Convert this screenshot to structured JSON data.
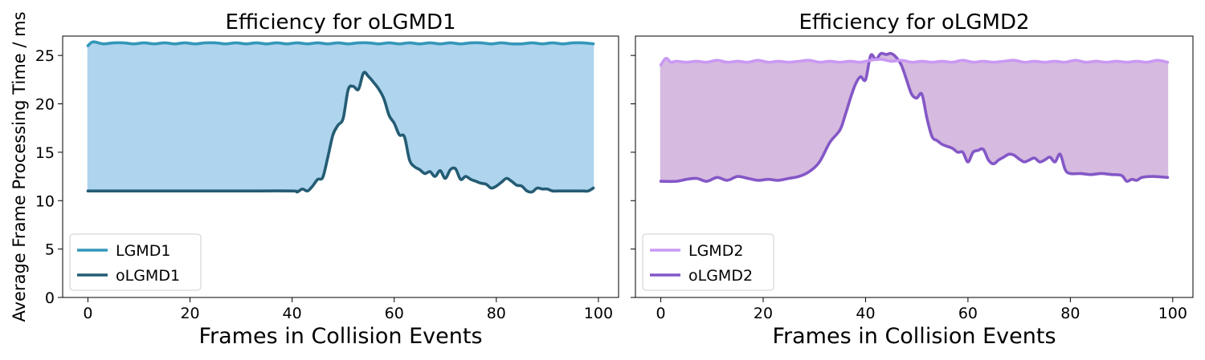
{
  "ylabel": "Average Frame Processing Time  / ms",
  "chart_data": [
    {
      "type": "area",
      "title": "Efficiency for oLGMD1",
      "xlabel": "Frames in Collision Events",
      "xlim": [
        -4.95,
        103.95
      ],
      "ylim": [
        0,
        27
      ],
      "xticks": [
        0,
        20,
        40,
        60,
        80,
        100
      ],
      "yticks": [
        0,
        5,
        10,
        15,
        20,
        25
      ],
      "fill_between": [
        "LGMD1",
        "oLGMD1"
      ],
      "fill_color": "#aed4ee",
      "legend_position": "lower left",
      "series": [
        {
          "name": "LGMD1",
          "color": "#3497b9",
          "x": [
            0,
            1,
            3,
            5,
            7,
            9,
            11,
            13,
            15,
            17,
            19,
            21,
            23,
            25,
            27,
            29,
            31,
            33,
            35,
            37,
            39,
            41,
            43,
            45,
            47,
            49,
            51,
            53,
            55,
            57,
            59,
            61,
            63,
            65,
            67,
            69,
            71,
            73,
            75,
            77,
            79,
            81,
            83,
            85,
            87,
            89,
            91,
            93,
            95,
            97,
            99
          ],
          "values": [
            26.0,
            26.4,
            26.2,
            26.3,
            26.3,
            26.2,
            26.3,
            26.2,
            26.3,
            26.2,
            26.3,
            26.2,
            26.3,
            26.3,
            26.2,
            26.3,
            26.2,
            26.3,
            26.2,
            26.3,
            26.2,
            26.3,
            26.2,
            26.3,
            26.2,
            26.3,
            26.2,
            26.3,
            26.3,
            26.2,
            26.3,
            26.2,
            26.3,
            26.2,
            26.3,
            26.2,
            26.3,
            26.2,
            26.3,
            26.3,
            26.2,
            26.3,
            26.2,
            26.2,
            26.3,
            26.2,
            26.3,
            26.2,
            26.3,
            26.3,
            26.2
          ]
        },
        {
          "name": "oLGMD1",
          "color": "#245c74",
          "x": [
            0,
            10,
            20,
            30,
            40,
            41,
            42,
            43,
            44,
            45,
            46,
            47,
            48,
            49,
            50,
            51,
            52,
            53,
            54,
            55,
            56,
            57,
            58,
            59,
            60,
            61,
            62,
            63,
            64,
            65,
            66,
            67,
            68,
            69,
            70,
            71,
            72,
            73,
            74,
            75,
            76,
            77,
            78,
            79,
            80,
            81,
            82,
            83,
            84,
            85,
            86,
            87,
            88,
            89,
            90,
            91,
            92,
            93,
            94,
            95,
            96,
            97,
            98,
            99
          ],
          "values": [
            11.0,
            11.0,
            11.0,
            11.0,
            11.0,
            10.9,
            11.2,
            11.0,
            11.5,
            12.2,
            12.4,
            14.5,
            16.8,
            17.8,
            18.5,
            21.5,
            21.8,
            21.5,
            23.2,
            22.8,
            22.2,
            21.5,
            20.5,
            18.8,
            18.0,
            16.8,
            16.6,
            14.2,
            13.5,
            13.2,
            12.8,
            13.0,
            12.5,
            13.1,
            12.3,
            13.2,
            13.3,
            12.2,
            12.5,
            12.2,
            12.0,
            11.8,
            11.7,
            11.3,
            11.5,
            11.9,
            12.3,
            12.0,
            11.6,
            11.5,
            11.0,
            10.9,
            11.3,
            11.2,
            11.2,
            11.0,
            11.0,
            11.0,
            11.0,
            11.0,
            11.0,
            11.0,
            11.0,
            11.3
          ]
        }
      ]
    },
    {
      "type": "area",
      "title": "Efficiency for oLGMD2",
      "xlabel": "Frames in Collision Events",
      "xlim": [
        -4.95,
        103.95
      ],
      "ylim": [
        0,
        27
      ],
      "xticks": [
        0,
        20,
        40,
        60,
        80,
        100
      ],
      "yticks": [
        0,
        5,
        10,
        15,
        20,
        25
      ],
      "fill_between": [
        "LGMD2",
        "oLGMD2"
      ],
      "fill_color": "#d6badf",
      "legend_position": "lower left",
      "series": [
        {
          "name": "LGMD2",
          "color": "#c999f3",
          "x": [
            0,
            1,
            2,
            3,
            5,
            7,
            9,
            11,
            13,
            15,
            17,
            19,
            21,
            23,
            25,
            27,
            29,
            31,
            33,
            35,
            37,
            39,
            41,
            43,
            45,
            47,
            49,
            51,
            53,
            55,
            57,
            59,
            61,
            63,
            65,
            67,
            69,
            71,
            73,
            75,
            77,
            79,
            81,
            83,
            85,
            87,
            89,
            91,
            93,
            95,
            97,
            99
          ],
          "values": [
            24.0,
            24.7,
            24.3,
            24.4,
            24.3,
            24.4,
            24.3,
            24.5,
            24.3,
            24.4,
            24.3,
            24.5,
            24.3,
            24.4,
            24.3,
            24.4,
            24.5,
            24.3,
            24.4,
            24.3,
            24.4,
            24.3,
            24.5,
            24.6,
            24.4,
            24.5,
            24.3,
            24.4,
            24.3,
            24.4,
            24.3,
            24.5,
            24.3,
            24.4,
            24.3,
            24.4,
            24.5,
            24.3,
            24.4,
            24.3,
            24.4,
            24.3,
            24.5,
            24.3,
            24.4,
            24.3,
            24.4,
            24.3,
            24.4,
            24.3,
            24.5,
            24.3
          ]
        },
        {
          "name": "oLGMD2",
          "color": "#8457c7",
          "x": [
            0,
            3,
            5,
            7,
            9,
            11,
            13,
            15,
            17,
            19,
            21,
            23,
            25,
            27,
            29,
            31,
            33,
            35,
            36,
            37,
            38,
            39,
            40,
            41,
            42,
            43,
            44,
            45,
            46,
            47,
            48,
            49,
            50,
            51,
            52,
            53,
            54,
            55,
            56,
            57,
            58,
            59,
            60,
            61,
            62,
            63,
            64,
            65,
            66,
            67,
            68,
            69,
            70,
            71,
            72,
            73,
            74,
            75,
            76,
            77,
            78,
            79,
            80,
            82,
            84,
            86,
            88,
            90,
            91,
            92,
            93,
            94,
            96,
            99
          ],
          "values": [
            12.0,
            12.0,
            12.2,
            12.3,
            12.0,
            12.4,
            12.1,
            12.5,
            12.3,
            12.1,
            12.2,
            12.1,
            12.3,
            12.5,
            13.0,
            14.0,
            16.0,
            17.3,
            18.8,
            20.5,
            22.0,
            22.8,
            22.5,
            25.0,
            24.6,
            25.2,
            25.1,
            25.2,
            24.8,
            24.0,
            22.5,
            21.0,
            20.6,
            21.0,
            18.5,
            16.6,
            16.2,
            15.8,
            15.6,
            15.4,
            15.0,
            15.0,
            14.0,
            15.0,
            15.2,
            15.3,
            14.2,
            13.8,
            14.2,
            14.5,
            14.8,
            14.7,
            14.3,
            14.0,
            14.2,
            14.4,
            14.0,
            14.2,
            14.5,
            14.0,
            14.8,
            13.2,
            12.8,
            12.8,
            12.7,
            12.8,
            12.7,
            12.6,
            12.0,
            12.2,
            12.1,
            12.4,
            12.5,
            12.4
          ]
        }
      ]
    }
  ]
}
